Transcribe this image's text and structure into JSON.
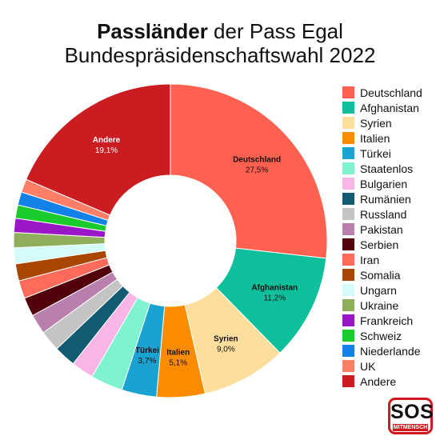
{
  "header": {
    "title_bold": "Passländer",
    "title_rest": " der Pass Egal",
    "subtitle": "Bundespräsidenschaftswahl 2022"
  },
  "logo": {
    "main": "SOS",
    "sub": "MITMENSCH"
  },
  "chart_data": {
    "type": "pie",
    "donut": true,
    "title": "Passländer der Pass Egal Bundespräsidenschaftswahl 2022",
    "legend_position": "right",
    "slices": [
      {
        "label": "Deutschland",
        "value": 27.5,
        "value_label": "27,5%",
        "color": "#fe6150",
        "show_label": true,
        "label_color": "#111111"
      },
      {
        "label": "Afghanistan",
        "value": 11.2,
        "value_label": "11,2%",
        "color": "#0dbf9b",
        "show_label": true,
        "label_color": "#111111"
      },
      {
        "label": "Syrien",
        "value": 9.0,
        "value_label": "9,0%",
        "color": "#fdde9c",
        "show_label": true,
        "label_color": "#111111"
      },
      {
        "label": "Italien",
        "value": 5.1,
        "value_label": "5,1%",
        "color": "#fb8c00",
        "show_label": true,
        "label_color": "#111111"
      },
      {
        "label": "Türkei",
        "value": 3.7,
        "value_label": "3,7%",
        "color": "#1aa3d1",
        "show_label": true,
        "label_color": "#111111"
      },
      {
        "label": "Staatenlos",
        "value": 3.4,
        "color": "#7ff3d0",
        "show_label": false
      },
      {
        "label": "Bulgarien",
        "value": 2.4,
        "color": "#f7b6e5",
        "show_label": false
      },
      {
        "label": "Rumänien",
        "value": 2.3,
        "color": "#135a73",
        "show_label": false
      },
      {
        "label": "Russland",
        "value": 2.2,
        "color": "#c4c4c4",
        "show_label": false
      },
      {
        "label": "Pakistan",
        "value": 2.1,
        "color": "#b97fad",
        "show_label": false
      },
      {
        "label": "Serbien",
        "value": 2.0,
        "color": "#52000a",
        "show_label": false
      },
      {
        "label": "Iran",
        "value": 1.9,
        "color": "#fe6b5b",
        "show_label": false
      },
      {
        "label": "Somalia",
        "value": 1.8,
        "color": "#a94700",
        "show_label": false
      },
      {
        "label": "Ungarn",
        "value": 1.7,
        "color": "#d5fafa",
        "show_label": false
      },
      {
        "label": "Ukraine",
        "value": 1.6,
        "color": "#8fae5b",
        "show_label": false
      },
      {
        "label": "Frankreich",
        "value": 1.5,
        "color": "#9b16c6",
        "show_label": false
      },
      {
        "label": "Schweiz",
        "value": 1.4,
        "color": "#1acb2d",
        "show_label": false
      },
      {
        "label": "Niederlande",
        "value": 1.4,
        "color": "#1281e8",
        "show_label": false
      },
      {
        "label": "UK",
        "value": 1.4,
        "color": "#fe7e68",
        "show_label": false
      },
      {
        "label": "Andere",
        "value": 19.1,
        "value_label": "19,1%",
        "color": "#cb1c22",
        "show_label": true,
        "label_color": "#ffffff"
      }
    ]
  }
}
